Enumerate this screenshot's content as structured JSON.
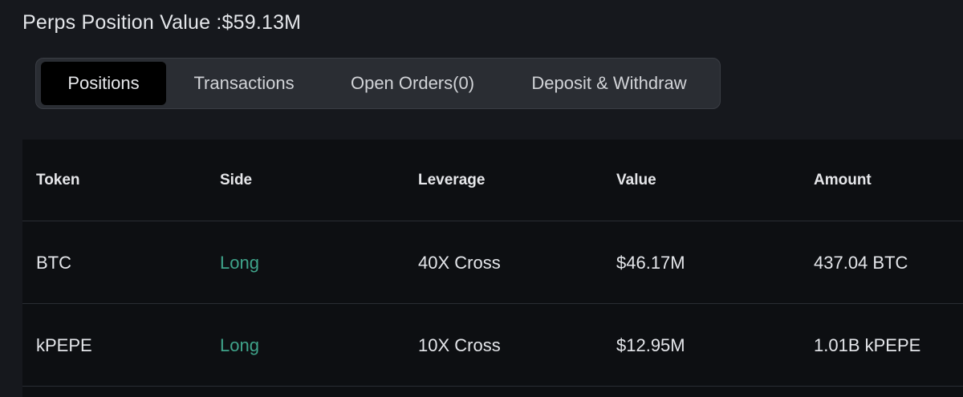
{
  "header": {
    "title": "Perps Position Value :$59.13M"
  },
  "tabs": [
    {
      "label": "Positions",
      "active": true
    },
    {
      "label": "Transactions",
      "active": false
    },
    {
      "label": "Open Orders(0)",
      "active": false
    },
    {
      "label": "Deposit & Withdraw",
      "active": false
    }
  ],
  "table": {
    "columns": [
      "Token",
      "Side",
      "Leverage",
      "Value",
      "Amount"
    ],
    "rows": [
      [
        "BTC",
        "Long",
        "40X Cross",
        "$46.17M",
        "437.04 BTC"
      ],
      [
        "kPEPE",
        "Long",
        "10X Cross",
        "$12.95M",
        "1.01B kPEPE"
      ]
    ]
  },
  "colors": {
    "background": "#16181d",
    "table_background": "#0d0f12",
    "tab_bar": "#2a2d33",
    "active_tab": "#000000",
    "long_side": "#3fa38a"
  }
}
